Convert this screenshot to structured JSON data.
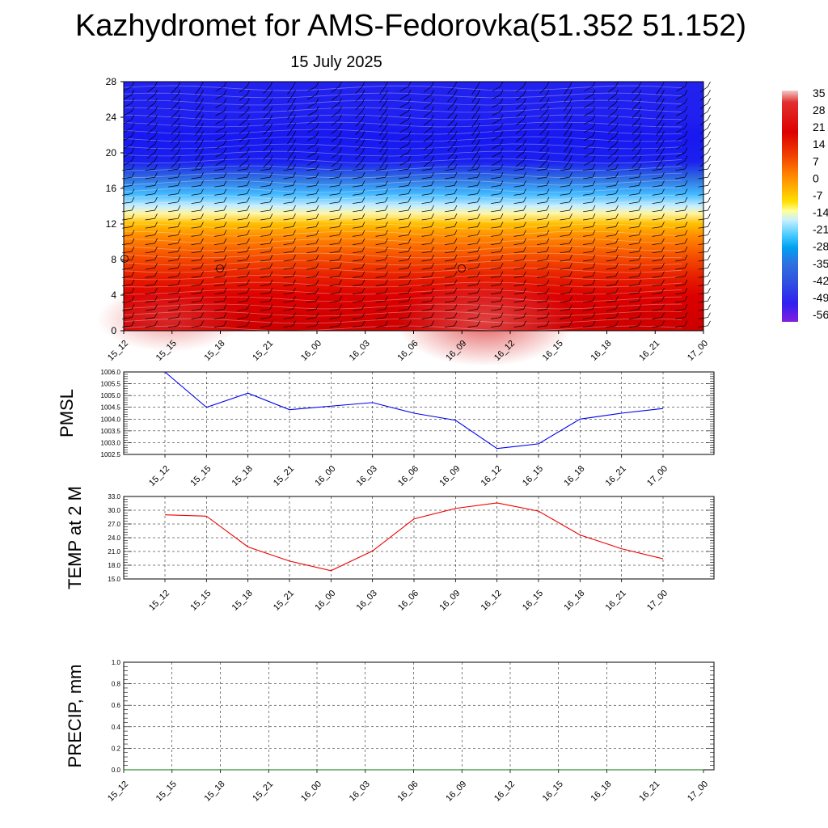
{
  "title": "Kazhydromet for AMS-Fedorovka(51.352 51.152)",
  "subtitle": "15 July 2025",
  "time_labels": [
    "15_12",
    "15_15",
    "15_18",
    "15_21",
    "16_00",
    "16_03",
    "16_06",
    "16_09",
    "16_12",
    "16_15",
    "16_18",
    "16_21",
    "17_00"
  ],
  "colors": {
    "pmsl_line": "#0000ee",
    "temp_line": "#ee0000",
    "precip_line": "#007700",
    "grid": "#000000",
    "cold": "#1a10ee",
    "warm": "#d40000"
  },
  "chart_data": [
    {
      "type": "heatmap",
      "name": "cross-section",
      "x": [
        "15_12",
        "15_15",
        "15_18",
        "15_21",
        "16_00",
        "16_03",
        "16_06",
        "16_09",
        "16_12",
        "16_15",
        "16_18",
        "16_21",
        "17_00"
      ],
      "yticks": [
        0,
        4,
        8,
        12,
        16,
        20,
        24,
        28
      ],
      "ylim": [
        0,
        28
      ],
      "colorbar": {
        "labels": [
          "35",
          "28",
          "21",
          "14",
          "7",
          "0",
          "-7",
          "-14",
          "-21",
          "-28",
          "-35",
          "-42",
          "-49",
          "-56"
        ],
        "stops": [
          [
            "#f2c8c8",
            0.0
          ],
          [
            "#e23030",
            0.05
          ],
          [
            "#dd0000",
            0.18
          ],
          [
            "#f04000",
            0.28
          ],
          [
            "#ff8000",
            0.36
          ],
          [
            "#ffb000",
            0.42
          ],
          [
            "#ffe000",
            0.48
          ],
          [
            "#ffff99",
            0.52
          ],
          [
            "#c8f0ff",
            0.56
          ],
          [
            "#40c8ff",
            0.63
          ],
          [
            "#00a0f0",
            0.68
          ],
          [
            "#3070e0",
            0.75
          ],
          [
            "#3050e0",
            0.83
          ],
          [
            "#3020f0",
            0.92
          ],
          [
            "#8020e0",
            1.0
          ]
        ]
      }
    },
    {
      "type": "line",
      "ylabel": "PMSL",
      "ylim": [
        1002.5,
        1006.0
      ],
      "yticks": [
        "1002.5",
        "1003.0",
        "1003.5",
        "1004.0",
        "1004.5",
        "1005.0",
        "1005.5",
        "1006.0"
      ],
      "categories": [
        "15_12",
        "15_15",
        "15_18",
        "15_21",
        "16_00",
        "16_03",
        "16_06",
        "16_09",
        "16_12",
        "16_15",
        "16_18",
        "16_21",
        "17_00"
      ],
      "values": [
        1006.0,
        1004.5,
        1005.1,
        1004.4,
        1004.55,
        1004.7,
        1004.25,
        1003.95,
        1002.75,
        1002.95,
        1004.0,
        1004.25,
        1004.45
      ]
    },
    {
      "type": "line",
      "ylabel": "TEMP at 2 M",
      "ylim": [
        15.0,
        33.0
      ],
      "yticks": [
        "15.0",
        "18.0",
        "21.0",
        "24.0",
        "27.0",
        "30.0",
        "33.0"
      ],
      "categories": [
        "15_12",
        "15_15",
        "15_18",
        "15_21",
        "16_00",
        "16_03",
        "16_06",
        "16_09",
        "16_12",
        "16_15",
        "16_18",
        "16_21",
        "17_00"
      ],
      "values": [
        29.0,
        28.7,
        22.0,
        18.9,
        16.8,
        21.1,
        28.1,
        30.4,
        31.6,
        29.8,
        24.6,
        21.6,
        19.4
      ]
    },
    {
      "type": "line",
      "ylabel": "PRECIP, mm",
      "ylim": [
        0.0,
        1.0
      ],
      "yticks": [
        "0.0",
        "0.2",
        "0.4",
        "0.6",
        "0.8",
        "1.0"
      ],
      "categories": [
        "15_12",
        "15_15",
        "15_18",
        "15_21",
        "16_00",
        "16_03",
        "16_06",
        "16_09",
        "16_12",
        "16_15",
        "16_18",
        "16_21",
        "17_00"
      ],
      "values": [
        0,
        0,
        0,
        0,
        0,
        0,
        0,
        0,
        0,
        0,
        0,
        0,
        0
      ]
    }
  ]
}
